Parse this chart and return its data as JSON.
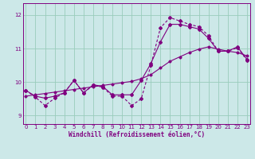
{
  "xlabel": "Windchill (Refroidissement éolien,°C)",
  "bg_color": "#cce8e8",
  "line_color": "#800080",
  "grid_color": "#99ccbb",
  "x_ticks": [
    0,
    1,
    2,
    3,
    4,
    5,
    6,
    7,
    8,
    9,
    10,
    11,
    12,
    13,
    14,
    15,
    16,
    17,
    18,
    19,
    20,
    21,
    22,
    23
  ],
  "y_ticks": [
    9,
    10,
    11,
    12
  ],
  "ylim": [
    8.75,
    12.35
  ],
  "xlim": [
    -0.3,
    23.3
  ],
  "jagged_y": [
    9.75,
    9.55,
    9.3,
    9.52,
    9.68,
    10.05,
    9.68,
    9.9,
    9.85,
    9.58,
    9.58,
    9.3,
    9.5,
    10.5,
    11.62,
    11.92,
    11.82,
    11.72,
    11.65,
    11.38,
    10.92,
    10.92,
    11.02,
    10.65
  ],
  "smooth_y": [
    9.75,
    9.58,
    9.52,
    9.58,
    9.68,
    10.05,
    9.68,
    9.92,
    9.87,
    9.62,
    9.62,
    9.62,
    10.05,
    10.55,
    11.2,
    11.72,
    11.72,
    11.65,
    11.58,
    11.3,
    10.92,
    10.92,
    11.05,
    10.68
  ],
  "trend_y": [
    9.58,
    9.62,
    9.66,
    9.7,
    9.74,
    9.78,
    9.82,
    9.86,
    9.9,
    9.94,
    9.98,
    10.02,
    10.1,
    10.22,
    10.42,
    10.62,
    10.75,
    10.88,
    10.98,
    11.05,
    10.98,
    10.92,
    10.88,
    10.78
  ]
}
